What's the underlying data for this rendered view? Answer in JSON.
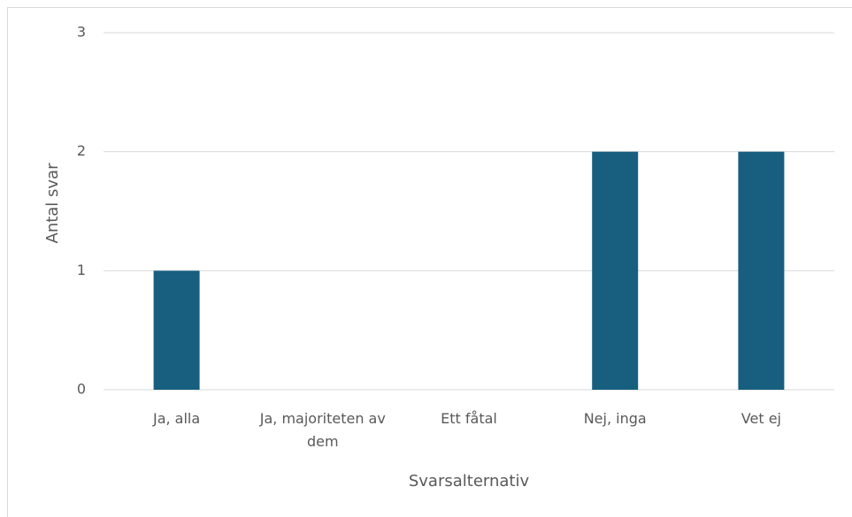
{
  "chart_data": {
    "type": "bar",
    "x_label": "Svarsalternativ",
    "y_label": "Antal svar",
    "categories": [
      "Ja, alla",
      "Ja, majoriteten av dem",
      "Ett fåtal",
      "Nej, inga",
      "Vet ej"
    ],
    "values": [
      1,
      0,
      0,
      2,
      2
    ],
    "color": "#175e7f",
    "ylim": [
      0,
      3
    ],
    "yticks": [
      0,
      1,
      2,
      3
    ],
    "grid": true
  }
}
